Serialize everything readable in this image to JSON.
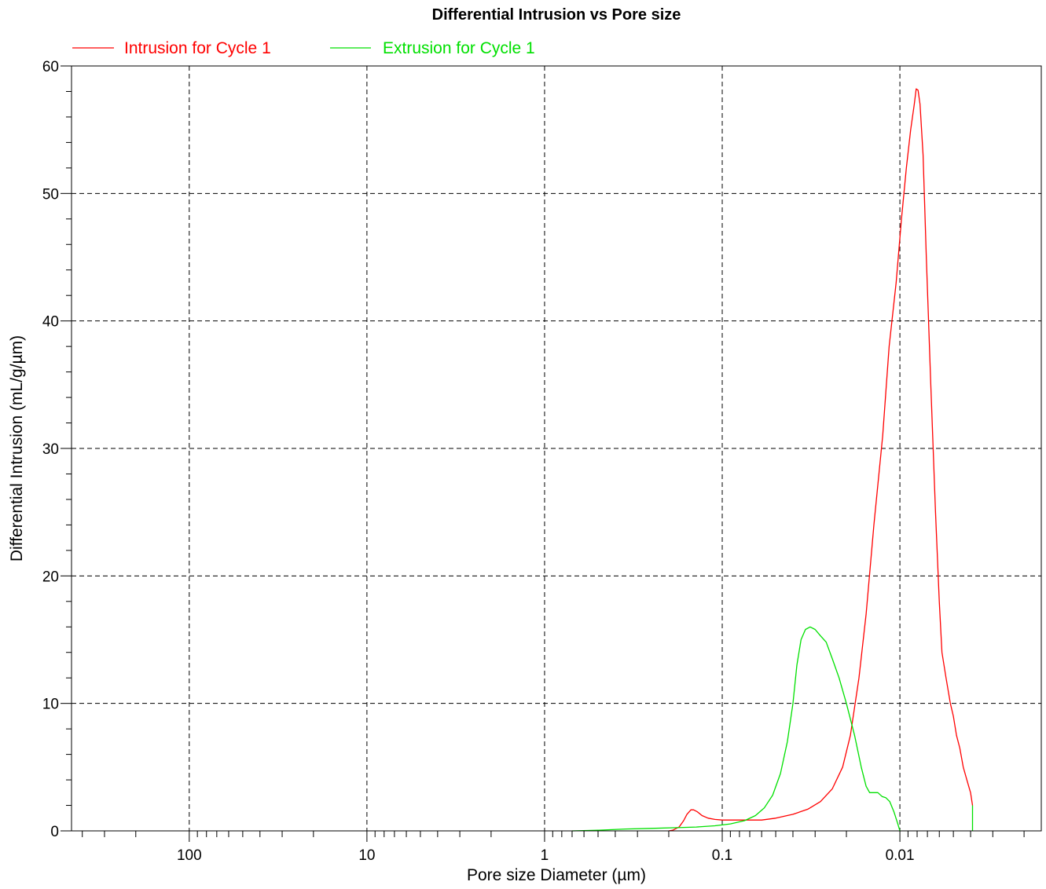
{
  "chart_data": {
    "type": "line",
    "title": "Differential Intrusion vs Pore size",
    "xlabel": "Pore size Diameter (µm)",
    "ylabel": "Differential Intrusion (mL/g/µm)",
    "x_scale": "log",
    "x_reversed": true,
    "xlim": [
      460,
      0.0016
    ],
    "ylim": [
      0,
      60
    ],
    "x_ticks": [
      {
        "value": 100,
        "label": "100"
      },
      {
        "value": 10,
        "label": "10"
      },
      {
        "value": 1,
        "label": "1"
      },
      {
        "value": 0.1,
        "label": "0.1"
      },
      {
        "value": 0.01,
        "label": "0.01"
      }
    ],
    "y_ticks": [
      {
        "value": 0,
        "label": "0"
      },
      {
        "value": 10,
        "label": "10"
      },
      {
        "value": 20,
        "label": "20"
      },
      {
        "value": 30,
        "label": "30"
      },
      {
        "value": 40,
        "label": "40"
      },
      {
        "value": 50,
        "label": "50"
      },
      {
        "value": 60,
        "label": "60"
      }
    ],
    "grid": true,
    "legend_position": "top-left",
    "series": [
      {
        "name": "Intrusion for Cycle 1",
        "color": "#ff0000",
        "points": [
          [
            0.2,
            0.0
          ],
          [
            0.19,
            0.05
          ],
          [
            0.175,
            0.3
          ],
          [
            0.165,
            0.8
          ],
          [
            0.158,
            1.3
          ],
          [
            0.15,
            1.65
          ],
          [
            0.145,
            1.65
          ],
          [
            0.138,
            1.5
          ],
          [
            0.13,
            1.2
          ],
          [
            0.12,
            1.0
          ],
          [
            0.11,
            0.9
          ],
          [
            0.1,
            0.85
          ],
          [
            0.08,
            0.85
          ],
          [
            0.06,
            0.85
          ],
          [
            0.05,
            1.0
          ],
          [
            0.04,
            1.3
          ],
          [
            0.033,
            1.7
          ],
          [
            0.028,
            2.3
          ],
          [
            0.024,
            3.3
          ],
          [
            0.021,
            5.0
          ],
          [
            0.019,
            7.5
          ],
          [
            0.017,
            12.0
          ],
          [
            0.0155,
            17.0
          ],
          [
            0.014,
            24.0
          ],
          [
            0.0125,
            31.0
          ],
          [
            0.0115,
            38.0
          ],
          [
            0.0105,
            43.0
          ],
          [
            0.0098,
            48.0
          ],
          [
            0.0092,
            52.0
          ],
          [
            0.0087,
            55.0
          ],
          [
            0.0083,
            57.0
          ],
          [
            0.0081,
            58.2
          ],
          [
            0.0079,
            58.1
          ],
          [
            0.0077,
            57.0
          ],
          [
            0.0074,
            53.0
          ],
          [
            0.0071,
            45.0
          ],
          [
            0.0067,
            35.0
          ],
          [
            0.0063,
            25.0
          ],
          [
            0.006,
            18.0
          ],
          [
            0.0058,
            14.0
          ],
          [
            0.0055,
            12.0
          ],
          [
            0.0052,
            10.0
          ],
          [
            0.005,
            9.0
          ],
          [
            0.0048,
            7.5
          ],
          [
            0.0046,
            6.5
          ],
          [
            0.0044,
            5.0
          ],
          [
            0.0042,
            4.0
          ],
          [
            0.004,
            3.0
          ],
          [
            0.0039,
            2.0
          ]
        ]
      },
      {
        "name": "Extrusion for Cycle 1",
        "color": "#00e000",
        "points": [
          [
            0.7,
            0.0
          ],
          [
            0.5,
            0.05
          ],
          [
            0.35,
            0.15
          ],
          [
            0.25,
            0.2
          ],
          [
            0.18,
            0.25
          ],
          [
            0.14,
            0.3
          ],
          [
            0.11,
            0.4
          ],
          [
            0.09,
            0.55
          ],
          [
            0.075,
            0.8
          ],
          [
            0.065,
            1.2
          ],
          [
            0.058,
            1.8
          ],
          [
            0.052,
            2.8
          ],
          [
            0.047,
            4.5
          ],
          [
            0.043,
            7.0
          ],
          [
            0.04,
            10.0
          ],
          [
            0.038,
            13.0
          ],
          [
            0.036,
            15.0
          ],
          [
            0.034,
            15.8
          ],
          [
            0.032,
            16.0
          ],
          [
            0.03,
            15.8
          ],
          [
            0.028,
            15.3
          ],
          [
            0.026,
            14.8
          ],
          [
            0.024,
            13.5
          ],
          [
            0.022,
            12.0
          ],
          [
            0.02,
            10.0
          ],
          [
            0.018,
            7.5
          ],
          [
            0.0165,
            5.0
          ],
          [
            0.0155,
            3.5
          ],
          [
            0.0148,
            3.0
          ],
          [
            0.014,
            3.0
          ],
          [
            0.0133,
            3.0
          ],
          [
            0.0126,
            2.7
          ],
          [
            0.012,
            2.6
          ],
          [
            0.0114,
            2.3
          ],
          [
            0.0108,
            1.5
          ],
          [
            0.0103,
            0.6
          ],
          [
            0.01,
            0.0
          ]
        ]
      },
      {
        "name": "",
        "color": "#00e000",
        "points": [
          [
            0.0039,
            0.0
          ],
          [
            0.0039,
            2.0
          ]
        ]
      }
    ]
  }
}
